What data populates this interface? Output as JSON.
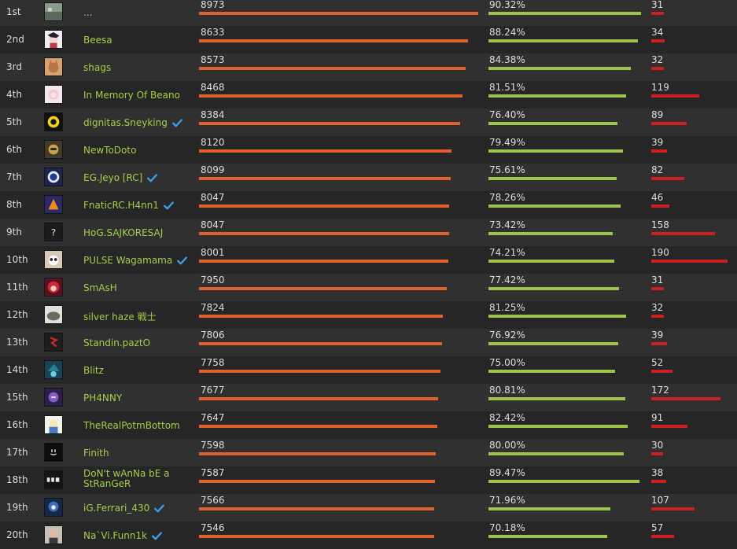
{
  "colors": {
    "score_bar": "#e0612c",
    "win_bar": "#9ac74a",
    "games_bar": "#cc1f1f",
    "name_text": "#a5ce4b",
    "verified_icon": "#3a9ee0"
  },
  "scales": {
    "score_max": 8973,
    "win_pct_max": 100,
    "games_max": 190
  },
  "players": [
    {
      "rank": "1st",
      "name": "...",
      "verified": false,
      "score": 8973,
      "score_label": "8973",
      "win_pct": 90.32,
      "win_label": "90.32%",
      "games": 31,
      "games_label": "31",
      "avatar_icon": "landscape-avatar-icon"
    },
    {
      "rank": "2nd",
      "name": "Beesa",
      "verified": false,
      "score": 8633,
      "score_label": "8633",
      "win_pct": 88.24,
      "win_label": "88.24%",
      "games": 34,
      "games_label": "34",
      "avatar_icon": "anime-girl-avatar-icon"
    },
    {
      "rank": "3rd",
      "name": "shags",
      "verified": false,
      "score": 8573,
      "score_label": "8573",
      "win_pct": 84.38,
      "win_label": "84.38%",
      "games": 32,
      "games_label": "32",
      "avatar_icon": "cat-avatar-icon"
    },
    {
      "rank": "4th",
      "name": "In Memory Of Beano",
      "verified": false,
      "score": 8468,
      "score_label": "8468",
      "win_pct": 81.51,
      "win_label": "81.51%",
      "games": 119,
      "games_label": "119",
      "avatar_icon": "pink-hair-avatar-icon"
    },
    {
      "rank": "5th",
      "name": "dignitas.Sneyking",
      "verified": true,
      "score": 8384,
      "score_label": "8384",
      "win_pct": 76.4,
      "win_label": "76.40%",
      "games": 89,
      "games_label": "89",
      "avatar_icon": "dignitas-logo-avatar-icon"
    },
    {
      "rank": "6th",
      "name": "NewToDoto",
      "verified": false,
      "score": 8120,
      "score_label": "8120",
      "win_pct": 79.49,
      "win_label": "79.49%",
      "games": 39,
      "games_label": "39",
      "avatar_icon": "character-avatar-icon"
    },
    {
      "rank": "7th",
      "name": "EG.Jeyo [RC]",
      "verified": true,
      "score": 8099,
      "score_label": "8099",
      "win_pct": 75.61,
      "win_label": "75.61%",
      "games": 82,
      "games_label": "82",
      "avatar_icon": "eg-logo-avatar-icon"
    },
    {
      "rank": "8th",
      "name": "FnaticRC.H4nn1",
      "verified": true,
      "score": 8047,
      "score_label": "8047",
      "win_pct": 78.26,
      "win_label": "78.26%",
      "games": 46,
      "games_label": "46",
      "avatar_icon": "fnatic-logo-avatar-icon"
    },
    {
      "rank": "9th",
      "name": "HoG.SAJKORESAJ",
      "verified": false,
      "score": 8047,
      "score_label": "8047",
      "win_pct": 73.42,
      "win_label": "73.42%",
      "games": 158,
      "games_label": "158",
      "avatar_icon": "unknown-avatar-icon"
    },
    {
      "rank": "10th",
      "name": "PULSE Wagamama",
      "verified": true,
      "score": 8001,
      "score_label": "8001",
      "win_pct": 74.21,
      "win_label": "74.21%",
      "games": 190,
      "games_label": "190",
      "avatar_icon": "panda-avatar-icon"
    },
    {
      "rank": "11th",
      "name": "SmAsH",
      "verified": false,
      "score": 7950,
      "score_label": "7950",
      "win_pct": 77.42,
      "win_label": "77.42%",
      "games": 31,
      "games_label": "31",
      "avatar_icon": "red-hair-avatar-icon"
    },
    {
      "rank": "12th",
      "name": "silver haze 戦士",
      "verified": false,
      "score": 7824,
      "score_label": "7824",
      "win_pct": 81.25,
      "win_label": "81.25%",
      "games": 32,
      "games_label": "32",
      "avatar_icon": "rock-avatar-icon"
    },
    {
      "rank": "13th",
      "name": "Standin.paztO",
      "verified": false,
      "score": 7806,
      "score_label": "7806",
      "win_pct": 76.92,
      "win_label": "76.92%",
      "games": 39,
      "games_label": "39",
      "avatar_icon": "red-emblem-avatar-icon"
    },
    {
      "rank": "14th",
      "name": "Blitz",
      "verified": false,
      "score": 7758,
      "score_label": "7758",
      "win_pct": 75.0,
      "win_label": "75.00%",
      "games": 52,
      "games_label": "52",
      "avatar_icon": "witch-hat-avatar-icon"
    },
    {
      "rank": "15th",
      "name": "PH4NNY",
      "verified": false,
      "score": 7677,
      "score_label": "7677",
      "win_pct": 80.81,
      "win_label": "80.81%",
      "games": 172,
      "games_label": "172",
      "avatar_icon": "purple-hero-avatar-icon"
    },
    {
      "rank": "16th",
      "name": "TheRealPotmBottom",
      "verified": false,
      "score": 7647,
      "score_label": "7647",
      "win_pct": 82.42,
      "win_label": "82.42%",
      "games": 91,
      "games_label": "91",
      "avatar_icon": "anime-blue-avatar-icon"
    },
    {
      "rank": "17th",
      "name": "Finith",
      "verified": false,
      "score": 7598,
      "score_label": "7598",
      "win_pct": 80.0,
      "win_label": "80.00%",
      "games": 30,
      "games_label": "30",
      "avatar_icon": "smiley-avatar-icon"
    },
    {
      "rank": "18th",
      "name": "DoN't wAnNa bE a StRanGeR",
      "verified": false,
      "score": 7587,
      "score_label": "7587",
      "win_pct": 89.47,
      "win_label": "89.47%",
      "games": 38,
      "games_label": "38",
      "avatar_icon": "text-avatar-icon"
    },
    {
      "rank": "19th",
      "name": "iG.Ferrari_430",
      "verified": true,
      "score": 7566,
      "score_label": "7566",
      "win_pct": 71.96,
      "win_label": "71.96%",
      "games": 107,
      "games_label": "107",
      "avatar_icon": "blue-character-avatar-icon"
    },
    {
      "rank": "20th",
      "name": "Na`Vi.Funn1k",
      "verified": true,
      "score": 7546,
      "score_label": "7546",
      "win_pct": 70.18,
      "win_label": "70.18%",
      "games": 57,
      "games_label": "57",
      "avatar_icon": "photo-avatar-icon"
    }
  ]
}
